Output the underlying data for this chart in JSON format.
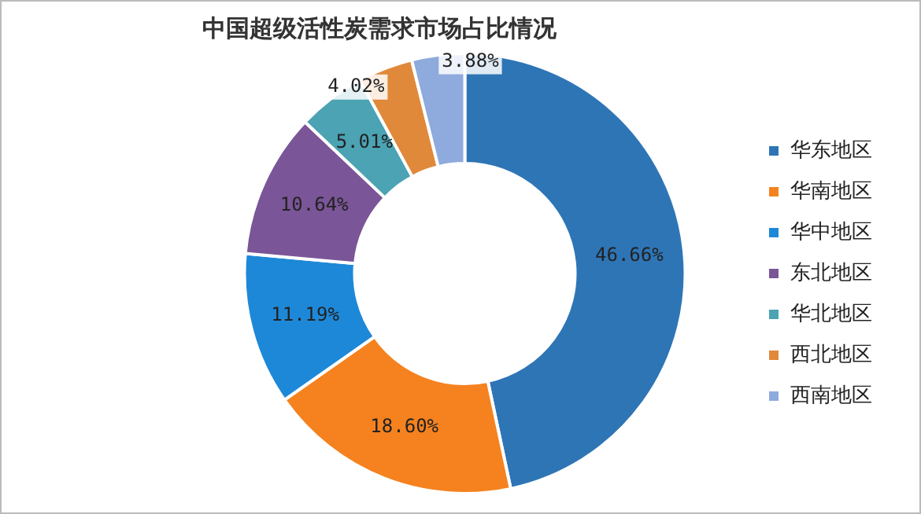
{
  "chart_data": {
    "type": "donut",
    "title": "中国超级活性炭需求市场占比情况",
    "categories": [
      "华东地区",
      "华南地区",
      "华中地区",
      "东北地区",
      "华北地区",
      "西北地区",
      "西南地区"
    ],
    "values": [
      46.66,
      18.6,
      11.19,
      10.64,
      5.01,
      4.02,
      3.88
    ],
    "value_labels": [
      "46.66%",
      "18.60%",
      "11.19%",
      "10.64%",
      "5.01%",
      "4.02%",
      "3.88%"
    ],
    "colors": [
      "#2e75b6",
      "#f5821f",
      "#1e88d8",
      "#7a5597",
      "#4ba3b3",
      "#e0893a",
      "#8faadc"
    ],
    "legend": "right"
  }
}
